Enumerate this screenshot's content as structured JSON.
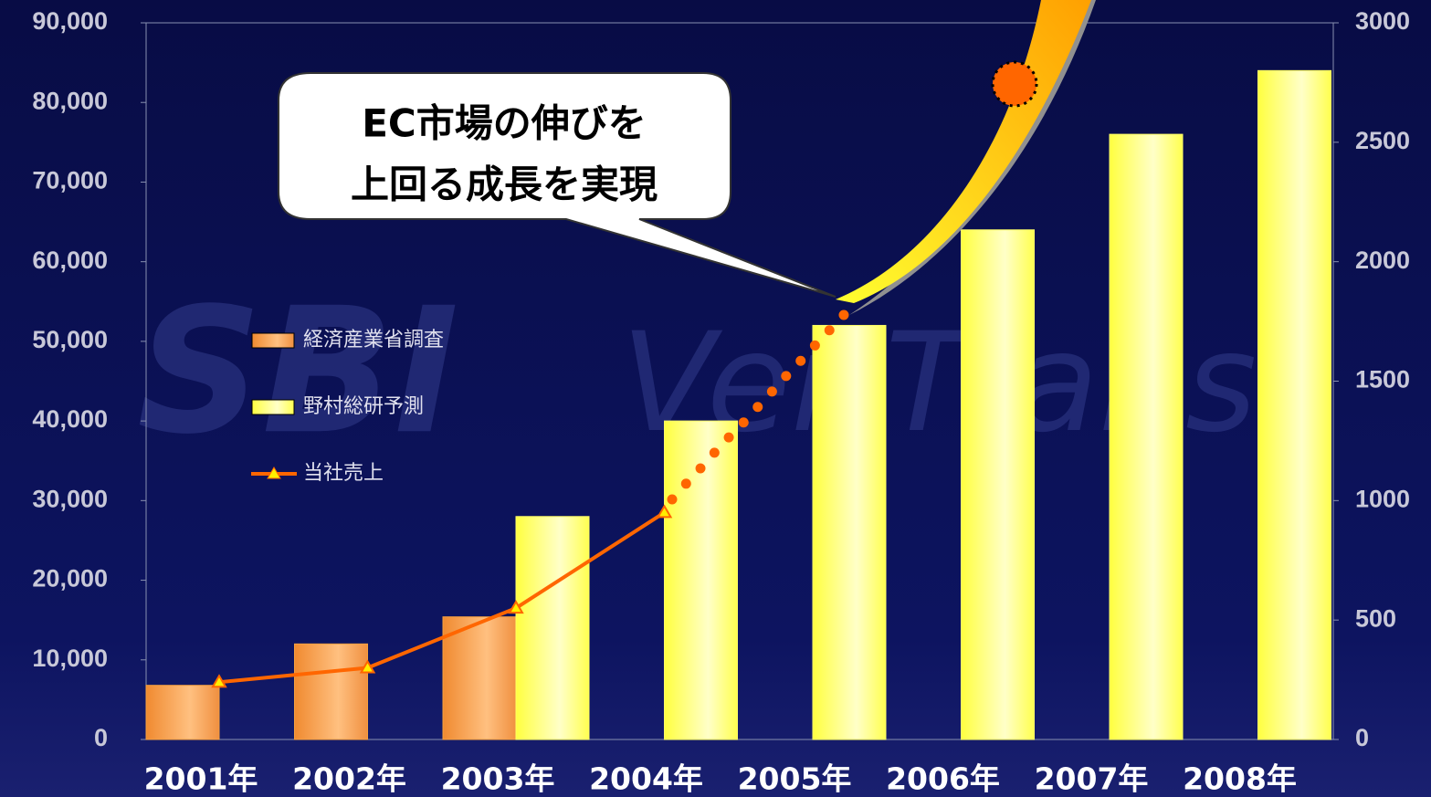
{
  "chart_data": {
    "type": "bar",
    "watermark": [
      "SBI",
      "VeriTrans"
    ],
    "annotations": [
      "EC市場の伸びを",
      "上回る成長を実現"
    ],
    "categories": [
      "2001年",
      "2002年",
      "2003年",
      "2004年",
      "2005年",
      "2006年",
      "2007年",
      "2008年"
    ],
    "series": [
      {
        "name": "経済産業省調査",
        "type": "bar",
        "color": "#f5a040",
        "values": [
          6800,
          12000,
          15400,
          null,
          null,
          null,
          null,
          null
        ]
      },
      {
        "name": "野村総研予測",
        "type": "bar",
        "color": "#ffff66",
        "values": [
          null,
          null,
          28000,
          40000,
          52000,
          64000,
          76000,
          84000
        ]
      },
      {
        "name": "当社売上",
        "type": "line",
        "axis": "y2",
        "color": "#ff6600",
        "values": [
          240,
          300,
          550,
          950,
          null,
          null,
          null,
          null
        ]
      }
    ],
    "ylim": [
      0,
      90000
    ],
    "yticks": [
      0,
      {
        "value": 10000,
        "label": "10,000"
      },
      {
        "value": 20000,
        "label": "20,000"
      },
      {
        "value": 30000,
        "label": "30,000"
      },
      {
        "value": 40000,
        "label": "40,000"
      },
      {
        "value": 50000,
        "label": "50,000"
      },
      {
        "value": 60000,
        "label": "60,000"
      },
      {
        "value": 70000,
        "label": "70,000"
      },
      {
        "value": 80000,
        "label": "80,000"
      },
      {
        "value": 90000,
        "label": "90,000"
      }
    ],
    "y2lim": [
      0,
      3000
    ],
    "y2ticks": [
      0,
      500,
      1000,
      1500,
      2000,
      2500,
      3000
    ]
  }
}
